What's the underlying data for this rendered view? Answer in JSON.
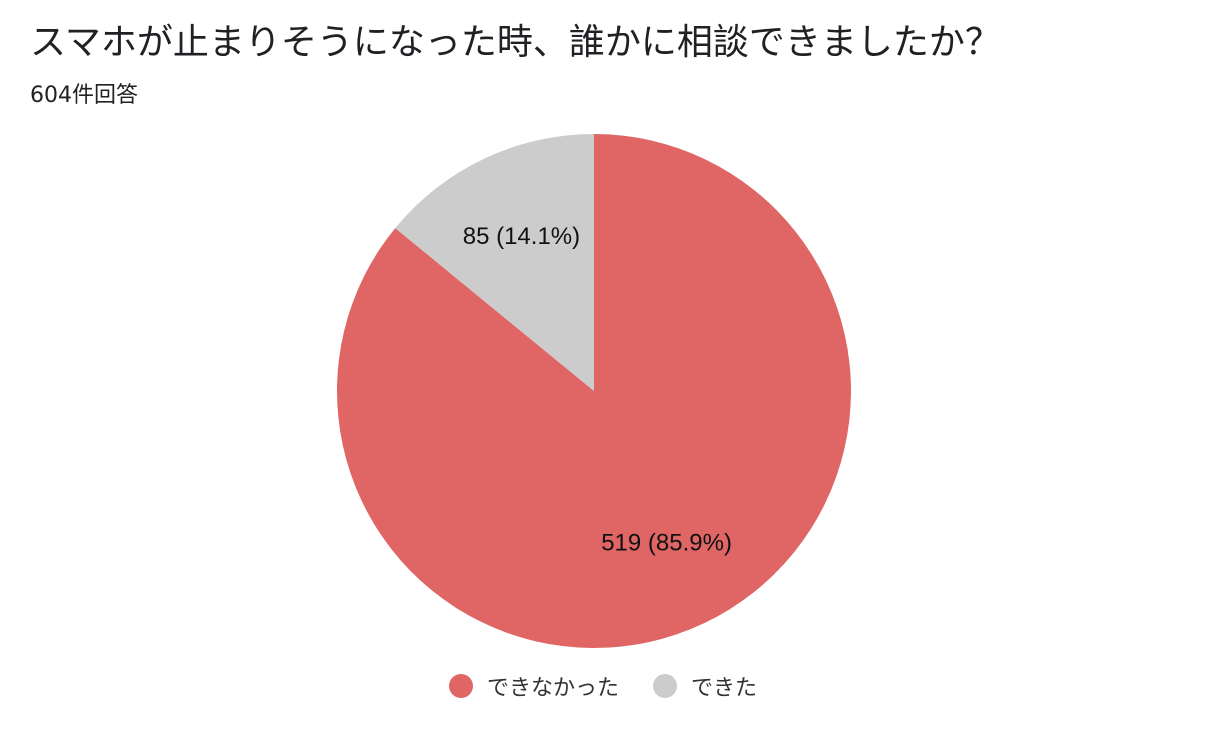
{
  "header": {
    "title": "スマホが止まりそうになった時、誰かに相談できましたか？",
    "response_count": "604件回答"
  },
  "chart_data": {
    "type": "pie",
    "total": 604,
    "slices": [
      {
        "name": "できなかった",
        "value": 519,
        "percent": 85.9,
        "label": "519 (85.9%)",
        "color": "#e06666"
      },
      {
        "name": "できた",
        "value": 85,
        "percent": 14.1,
        "label": "85 (14.1%)",
        "color": "#cccccc"
      }
    ],
    "legend_placement": "bottom"
  }
}
